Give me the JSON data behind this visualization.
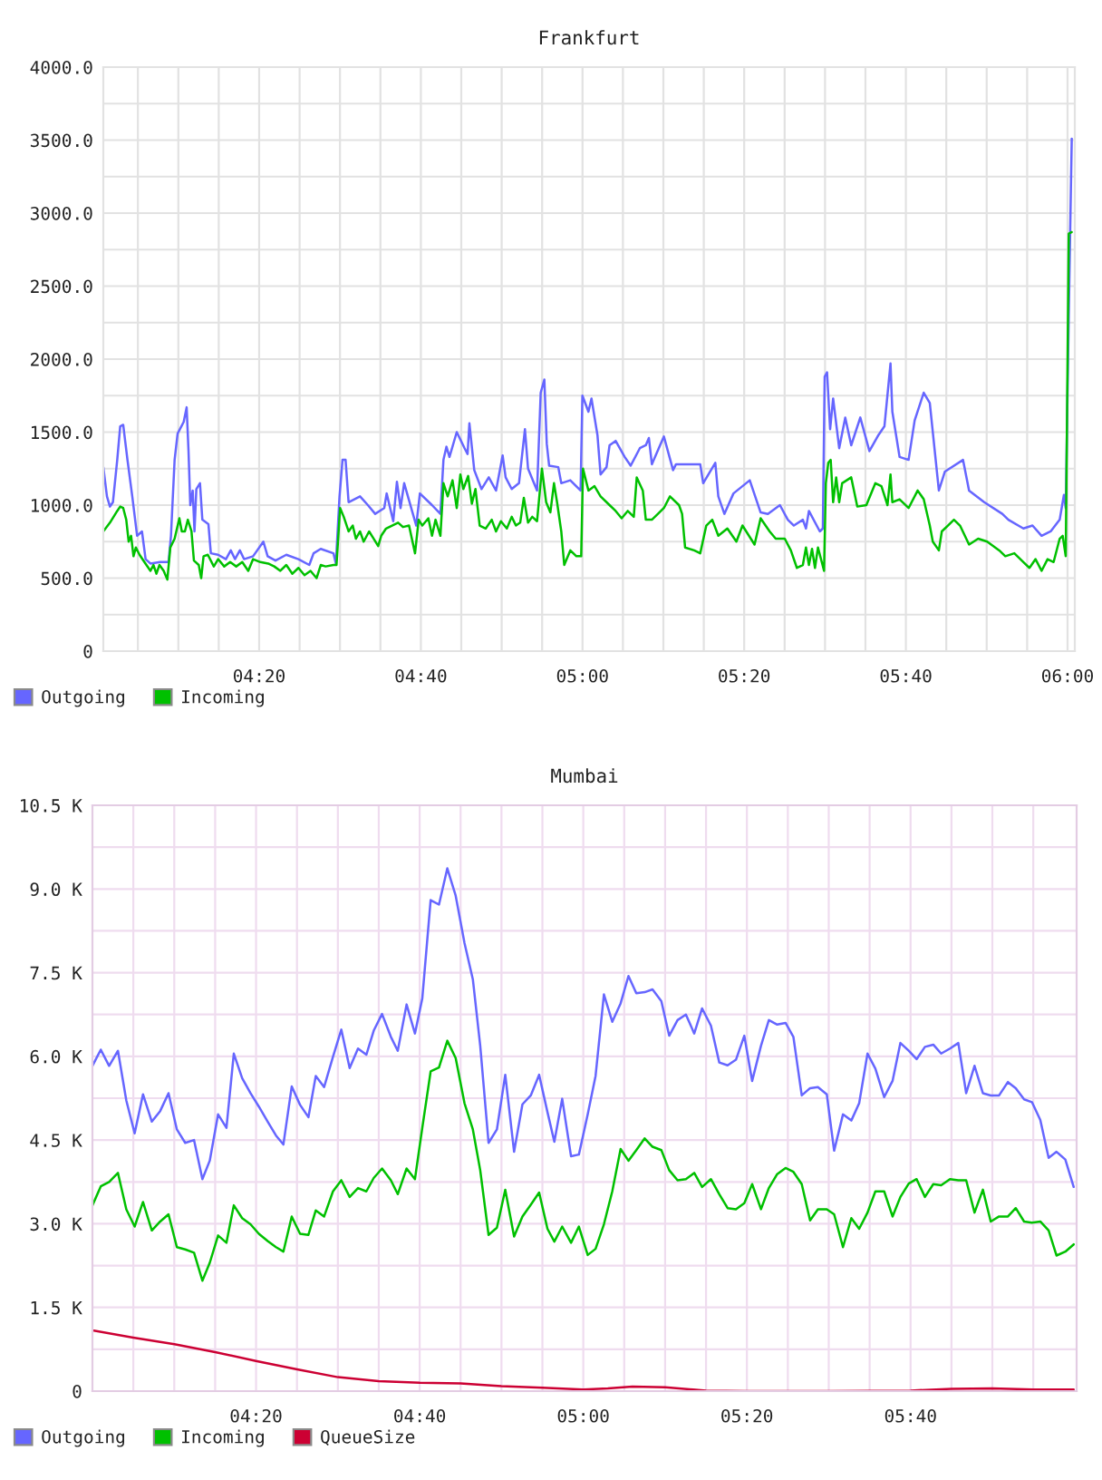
{
  "chart_data": [
    {
      "type": "line",
      "title": "Frankfurt",
      "xlim": [
        4.012,
        6.015
      ],
      "ylim": [
        0,
        4000
      ],
      "grid": true,
      "legend": "bottom left",
      "xticks": [
        {
          "value": 4.0833,
          "label": null
        },
        {
          "value": 4.1667,
          "label": null
        },
        {
          "value": 4.25,
          "label": null
        },
        {
          "value": 4.3333,
          "label": "04:20"
        },
        {
          "value": 4.4167,
          "label": null
        },
        {
          "value": 4.5,
          "label": null
        },
        {
          "value": 4.5833,
          "label": null
        },
        {
          "value": 4.6667,
          "label": "04:40"
        },
        {
          "value": 4.75,
          "label": null
        },
        {
          "value": 4.8333,
          "label": null
        },
        {
          "value": 4.9167,
          "label": null
        },
        {
          "value": 5,
          "label": "05:00"
        },
        {
          "value": 5.0833,
          "label": null
        },
        {
          "value": 5.1667,
          "label": null
        },
        {
          "value": 5.25,
          "label": null
        },
        {
          "value": 5.3333,
          "label": "05:20"
        },
        {
          "value": 5.4167,
          "label": null
        },
        {
          "value": 5.5,
          "label": null
        },
        {
          "value": 5.5833,
          "label": null
        },
        {
          "value": 5.6667,
          "label": "05:40"
        },
        {
          "value": 5.75,
          "label": null
        },
        {
          "value": 5.8333,
          "label": null
        },
        {
          "value": 5.9167,
          "label": null
        },
        {
          "value": 6,
          "label": "06:00"
        }
      ],
      "yticks": [
        0,
        {
          "value": 250,
          "label": null
        },
        {
          "value": 500,
          "label": "500.0"
        },
        {
          "value": 750,
          "label": null
        },
        {
          "value": 1000,
          "label": "1000.0"
        },
        {
          "value": 1250,
          "label": null
        },
        {
          "value": 1500,
          "label": "1500.0"
        },
        {
          "value": 1750,
          "label": null
        },
        {
          "value": 2000,
          "label": "2000.0"
        },
        {
          "value": 2250,
          "label": null
        },
        {
          "value": 2500,
          "label": "2500.0"
        },
        {
          "value": 2750,
          "label": null
        },
        {
          "value": 3000,
          "label": "3000.0"
        },
        {
          "value": 3250,
          "label": null
        },
        {
          "value": 3500,
          "label": "3500.0"
        },
        {
          "value": 3750,
          "label": null
        },
        {
          "value": 4000,
          "label": "4000.0"
        }
      ],
      "series": [
        {
          "name": "Outgoing",
          "color": "#6666ff",
          "x": [
            4.012,
            4.0195,
            4.0257,
            4.0318,
            4.0407,
            4.0468,
            4.053,
            4.0618,
            4.0717,
            4.0817,
            4.0917,
            4.0992,
            4.1092,
            4.129,
            4.1465,
            4.1515,
            4.159,
            4.1652,
            4.1777,
            4.1838,
            4.1877,
            4.1913,
            4.1963,
            4.2,
            4.2038,
            4.2113,
            4.2162,
            4.2287,
            4.2337,
            4.2487,
            4.2648,
            4.2748,
            4.2835,
            4.2935,
            4.3022,
            4.3208,
            4.342,
            4.3508,
            4.367,
            4.3893,
            4.4143,
            4.4367,
            4.4455,
            4.4603,
            4.4865,
            4.4915,
            4.499,
            4.5052,
            4.5115,
            4.5177,
            4.5413,
            4.5575,
            4.5725,
            4.5912,
            4.5962,
            4.6098,
            4.6173,
            4.6248,
            4.6323,
            4.6572,
            4.6647,
            4.6897,
            4.707,
            4.7133,
            4.7195,
            4.7257,
            4.7407,
            4.7568,
            4.763,
            4.7668,
            4.7768,
            4.7917,
            4.8067,
            4.8217,
            4.8353,
            4.8415,
            4.854,
            4.869,
            4.8813,
            4.8877,
            4.9063,
            4.9138,
            4.9213,
            4.9263,
            4.9312,
            4.95,
            4.9562,
            4.9748,
            4.996,
            4.9998,
            5.0122,
            5.0185,
            5.0308,
            5.0372,
            5.0495,
            5.0558,
            5.0683,
            5.087,
            5.0993,
            5.1182,
            5.1305,
            5.1368,
            5.143,
            5.1678,
            5.1867,
            5.1928,
            5.224,
            5.2427,
            5.2488,
            5.2738,
            5.28,
            5.2925,
            5.3112,
            5.3448,
            5.3672,
            5.3822,
            5.407,
            5.4233,
            5.4357,
            5.4543,
            5.4607,
            5.4668,
            5.4893,
            5.4955,
            5.4993,
            5.5042,
            5.5105,
            5.5167,
            5.5292,
            5.5417,
            5.554,
            5.5727,
            5.5915,
            5.6102,
            5.6225,
            5.635,
            5.6388,
            5.6537,
            5.6723,
            5.6848,
            5.7035,
            5.716,
            5.7347,
            5.7472,
            5.7845,
            5.797,
            5.8282,
            5.8655,
            5.878,
            5.909,
            5.9278,
            5.9465,
            5.9652,
            5.9838,
            5.9925,
            5.9963,
            6.0025,
            6.0087
          ],
          "values": [
            1260,
            1060,
            990,
            1020,
            1310,
            1540,
            1550,
            1310,
            1060,
            790,
            820,
            630,
            600,
            610,
            610,
            790,
            1310,
            1490,
            1570,
            1670,
            1370,
            1000,
            1100,
            820,
            1110,
            1150,
            900,
            870,
            670,
            660,
            630,
            690,
            630,
            690,
            630,
            650,
            750,
            650,
            620,
            660,
            630,
            590,
            670,
            700,
            670,
            600,
            1060,
            1310,
            1310,
            1020,
            1060,
            1000,
            940,
            980,
            1080,
            890,
            1160,
            980,
            1150,
            860,
            1080,
            1000,
            940,
            1310,
            1400,
            1330,
            1500,
            1390,
            1350,
            1560,
            1240,
            1110,
            1190,
            1100,
            1340,
            1190,
            1110,
            1150,
            1520,
            1250,
            1100,
            1770,
            1860,
            1420,
            1270,
            1260,
            1150,
            1170,
            1100,
            1750,
            1640,
            1730,
            1480,
            1210,
            1260,
            1410,
            1440,
            1330,
            1270,
            1390,
            1410,
            1460,
            1280,
            1470,
            1240,
            1280,
            1280,
            1280,
            1150,
            1290,
            1060,
            940,
            1080,
            1170,
            950,
            940,
            1000,
            900,
            860,
            900,
            840,
            960,
            820,
            840,
            1880,
            1910,
            1520,
            1730,
            1390,
            1600,
            1410,
            1600,
            1370,
            1480,
            1540,
            1970,
            1640,
            1330,
            1310,
            1580,
            1770,
            1700,
            1100,
            1230,
            1310,
            1100,
            1020,
            940,
            900,
            840,
            860,
            790,
            820,
            900,
            1070,
            980,
            2300,
            3510
          ]
        },
        {
          "name": "Incoming",
          "color": "#00c000",
          "x": [
            4.012,
            4.0257,
            4.0407,
            4.0468,
            4.053,
            4.0593,
            4.0643,
            4.0693,
            4.0742,
            4.0792,
            4.0867,
            4.0967,
            4.1092,
            4.1153,
            4.1215,
            4.1278,
            4.1365,
            4.144,
            4.1502,
            4.159,
            4.1688,
            4.1738,
            4.1802,
            4.1863,
            4.1938,
            4.1988,
            4.2088,
            4.2138,
            4.2187,
            4.2275,
            4.2398,
            4.2487,
            4.2612,
            4.2735,
            4.286,
            4.2985,
            4.3108,
            4.3208,
            4.3358,
            4.352,
            4.3645,
            4.377,
            4.3893,
            4.4018,
            4.4143,
            4.4268,
            4.4392,
            4.4517,
            4.4603,
            4.4703,
            4.4865,
            4.4928,
            4.5002,
            4.5077,
            4.5177,
            4.5263,
            4.5327,
            4.5413,
            4.5488,
            4.56,
            4.5675,
            4.5787,
            4.585,
            4.595,
            4.6073,
            4.6198,
            4.6298,
            4.6423,
            4.6547,
            4.6622,
            4.6697,
            4.6822,
            4.6897,
            4.697,
            4.707,
            4.7133,
            4.722,
            4.732,
            4.7407,
            4.7482,
            4.7543,
            4.7643,
            4.7718,
            4.7793,
            4.788,
            4.8005,
            4.8128,
            4.8217,
            4.8317,
            4.844,
            4.854,
            4.8627,
            4.8715,
            4.879,
            4.8877,
            4.8963,
            4.9063,
            4.9163,
            4.925,
            4.9337,
            4.9412,
            4.9475,
            4.9562,
            4.9623,
            4.9748,
            4.9873,
            4.9973,
            5.001,
            5.0122,
            5.0247,
            5.0372,
            5.0558,
            5.0683,
            5.0807,
            5.0932,
            5.1057,
            5.1118,
            5.1243,
            5.1305,
            5.143,
            5.1555,
            5.1678,
            5.1803,
            5.199,
            5.2053,
            5.2115,
            5.2302,
            5.2427,
            5.2552,
            5.2675,
            5.28,
            5.2987,
            5.3173,
            5.3298,
            5.3547,
            5.3672,
            5.3858,
            5.3983,
            5.417,
            5.4295,
            5.442,
            5.4543,
            5.4607,
            5.4668,
            5.4732,
            5.4793,
            5.4855,
            5.498,
            5.5017,
            5.5067,
            5.5117,
            5.5167,
            5.523,
            5.5292,
            5.5353,
            5.554,
            5.5665,
            5.5852,
            5.6038,
            5.6163,
            5.6288,
            5.635,
            5.6388,
            5.6537,
            5.6723,
            5.691,
            5.7035,
            5.716,
            5.7222,
            5.7347,
            5.7408,
            5.7533,
            5.7658,
            5.7783,
            5.797,
            5.8157,
            5.8343,
            5.8592,
            5.8717,
            5.8903,
            5.909,
            5.9215,
            5.934,
            5.9465,
            5.9588,
            5.9713,
            5.9838,
            5.99,
            5.9963,
            6.0025,
            6.0087
          ],
          "values": [
            820,
            880,
            960,
            990,
            980,
            900,
            750,
            790,
            650,
            710,
            660,
            610,
            550,
            590,
            530,
            590,
            550,
            490,
            710,
            770,
            910,
            820,
            820,
            900,
            820,
            620,
            590,
            500,
            650,
            660,
            580,
            630,
            580,
            610,
            580,
            610,
            550,
            630,
            610,
            600,
            580,
            550,
            590,
            530,
            570,
            520,
            550,
            500,
            590,
            580,
            590,
            590,
            980,
            920,
            820,
            860,
            770,
            820,
            750,
            820,
            780,
            720,
            790,
            840,
            860,
            880,
            850,
            860,
            670,
            900,
            860,
            910,
            790,
            900,
            790,
            1150,
            1060,
            1170,
            980,
            1210,
            1110,
            1200,
            1010,
            1110,
            860,
            840,
            900,
            820,
            890,
            840,
            920,
            860,
            880,
            1050,
            880,
            920,
            890,
            1250,
            1020,
            950,
            1150,
            1020,
            820,
            590,
            690,
            650,
            650,
            1250,
            1100,
            1130,
            1060,
            1000,
            960,
            910,
            960,
            920,
            1190,
            1100,
            900,
            900,
            940,
            980,
            1060,
            1000,
            940,
            710,
            690,
            670,
            860,
            900,
            790,
            840,
            750,
            860,
            730,
            910,
            820,
            770,
            770,
            690,
            570,
            590,
            710,
            590,
            700,
            570,
            710,
            550,
            1150,
            1290,
            1310,
            1020,
            1190,
            1020,
            1150,
            1190,
            990,
            1000,
            1150,
            1130,
            1000,
            1210,
            1020,
            1040,
            980,
            1100,
            1040,
            860,
            750,
            690,
            820,
            860,
            900,
            860,
            730,
            770,
            750,
            690,
            650,
            670,
            610,
            570,
            630,
            550,
            630,
            610,
            770,
            790,
            650,
            2860,
            2870
          ]
        }
      ]
    },
    {
      "type": "line",
      "title": "Mumbai",
      "xlim": [
        4.0,
        6.005
      ],
      "ylim": [
        0,
        10500
      ],
      "grid": true,
      "legend": "bottom left",
      "xticks": [
        {
          "value": 4.0833,
          "label": null
        },
        {
          "value": 4.1667,
          "label": null
        },
        {
          "value": 4.25,
          "label": null
        },
        {
          "value": 4.3333,
          "label": "04:20"
        },
        {
          "value": 4.4167,
          "label": null
        },
        {
          "value": 4.5,
          "label": null
        },
        {
          "value": 4.5833,
          "label": null
        },
        {
          "value": 4.6667,
          "label": "04:40"
        },
        {
          "value": 4.75,
          "label": null
        },
        {
          "value": 4.8333,
          "label": null
        },
        {
          "value": 4.9167,
          "label": null
        },
        {
          "value": 5,
          "label": "05:00"
        },
        {
          "value": 5.0833,
          "label": null
        },
        {
          "value": 5.1667,
          "label": null
        },
        {
          "value": 5.25,
          "label": null
        },
        {
          "value": 5.3333,
          "label": "05:20"
        },
        {
          "value": 5.4167,
          "label": null
        },
        {
          "value": 5.5,
          "label": null
        },
        {
          "value": 5.5833,
          "label": null
        },
        {
          "value": 5.6667,
          "label": "05:40"
        },
        {
          "value": 5.75,
          "label": null
        },
        {
          "value": 5.8333,
          "label": null
        },
        {
          "value": 5.9167,
          "label": null
        }
      ],
      "yticks": [
        0,
        {
          "value": 750,
          "label": null
        },
        {
          "value": 1500,
          "label": "1.5 K"
        },
        {
          "value": 2250,
          "label": null
        },
        {
          "value": 3000,
          "label": "3.0 K"
        },
        {
          "value": 3750,
          "label": null
        },
        {
          "value": 4500,
          "label": "4.5 K"
        },
        {
          "value": 5250,
          "label": null
        },
        {
          "value": 6000,
          "label": "6.0 K"
        },
        {
          "value": 6750,
          "label": null
        },
        {
          "value": 7500,
          "label": "7.5 K"
        },
        {
          "value": 8250,
          "label": null
        },
        {
          "value": 9000,
          "label": "9.0 K"
        },
        {
          "value": 9750,
          "label": null
        },
        {
          "value": 10500,
          "label": "10.5 K"
        }
      ],
      "series": [
        {
          "name": "Outgoing",
          "color": "#6666ff",
          "x": [
            4.0,
            4.017,
            4.034,
            4.052,
            4.069,
            4.086,
            4.103,
            4.121,
            4.138,
            4.155,
            4.172,
            4.189,
            4.207,
            4.224,
            4.239,
            4.256,
            4.273,
            4.288,
            4.305,
            4.322,
            4.339,
            4.357,
            4.374,
            4.389,
            4.406,
            4.423,
            4.44,
            4.455,
            4.472,
            4.49,
            4.507,
            4.524,
            4.541,
            4.558,
            4.573,
            4.59,
            4.608,
            4.622,
            4.64,
            4.657,
            4.672,
            4.689,
            4.706,
            4.723,
            4.74,
            4.758,
            4.775,
            4.79,
            4.807,
            4.824,
            4.841,
            4.859,
            4.876,
            4.893,
            4.91,
            4.927,
            4.941,
            4.957,
            4.975,
            4.991,
            5.009,
            5.025,
            5.042,
            5.059,
            5.076,
            5.092,
            5.108,
            5.125,
            5.141,
            5.159,
            5.175,
            5.192,
            5.209,
            5.226,
            5.242,
            5.26,
            5.277,
            5.294,
            5.311,
            5.328,
            5.344,
            5.362,
            5.378,
            5.395,
            5.412,
            5.428,
            5.445,
            5.462,
            5.478,
            5.496,
            5.511,
            5.529,
            5.546,
            5.562,
            5.579,
            5.595,
            5.613,
            5.63,
            5.646,
            5.663,
            5.679,
            5.696,
            5.713,
            5.729,
            5.747,
            5.764,
            5.78,
            5.797,
            5.814,
            5.83,
            5.847,
            5.865,
            5.881,
            5.898,
            5.914,
            5.931,
            5.948,
            5.964,
            5.982,
            5.999
          ],
          "values": [
            5830,
            6120,
            5830,
            6100,
            5210,
            4620,
            5320,
            4830,
            5020,
            5340,
            4690,
            4450,
            4500,
            3800,
            4130,
            4960,
            4720,
            6050,
            5610,
            5340,
            5100,
            4830,
            4580,
            4420,
            5460,
            5130,
            4910,
            5650,
            5450,
            5990,
            6480,
            5790,
            6140,
            6030,
            6460,
            6760,
            6350,
            6100,
            6930,
            6410,
            7040,
            8800,
            8720,
            9370,
            8880,
            8030,
            7380,
            6190,
            4450,
            4690,
            5670,
            4290,
            5140,
            5300,
            5670,
            5000,
            4470,
            5240,
            4210,
            4240,
            4960,
            5650,
            7110,
            6620,
            6950,
            7440,
            7130,
            7150,
            7200,
            6990,
            6370,
            6650,
            6750,
            6410,
            6860,
            6550,
            5890,
            5840,
            5940,
            6370,
            5560,
            6190,
            6650,
            6570,
            6600,
            6350,
            5300,
            5430,
            5450,
            5320,
            4310,
            4960,
            4850,
            5160,
            6050,
            5780,
            5270,
            5560,
            6240,
            6100,
            5950,
            6170,
            6210,
            6050,
            6140,
            6240,
            5340,
            5830,
            5340,
            5300,
            5300,
            5540,
            5430,
            5230,
            5180,
            4860,
            4180,
            4290,
            4150,
            3660
          ]
        },
        {
          "name": "Incoming",
          "color": "#00c000",
          "x": [
            4.0,
            4.017,
            4.034,
            4.052,
            4.069,
            4.086,
            4.103,
            4.121,
            4.138,
            4.155,
            4.172,
            4.189,
            4.207,
            4.224,
            4.239,
            4.256,
            4.273,
            4.288,
            4.305,
            4.322,
            4.339,
            4.357,
            4.374,
            4.389,
            4.406,
            4.423,
            4.44,
            4.455,
            4.472,
            4.49,
            4.507,
            4.524,
            4.541,
            4.558,
            4.573,
            4.59,
            4.608,
            4.622,
            4.64,
            4.657,
            4.672,
            4.689,
            4.706,
            4.723,
            4.74,
            4.758,
            4.775,
            4.79,
            4.807,
            4.824,
            4.841,
            4.859,
            4.876,
            4.893,
            4.91,
            4.927,
            4.941,
            4.957,
            4.975,
            4.991,
            5.009,
            5.025,
            5.042,
            5.059,
            5.076,
            5.092,
            5.108,
            5.125,
            5.141,
            5.159,
            5.175,
            5.192,
            5.209,
            5.226,
            5.242,
            5.26,
            5.277,
            5.294,
            5.311,
            5.328,
            5.344,
            5.362,
            5.378,
            5.395,
            5.412,
            5.428,
            5.445,
            5.462,
            5.478,
            5.496,
            5.511,
            5.529,
            5.546,
            5.562,
            5.579,
            5.595,
            5.613,
            5.63,
            5.646,
            5.663,
            5.679,
            5.696,
            5.713,
            5.729,
            5.747,
            5.764,
            5.78,
            5.797,
            5.814,
            5.83,
            5.847,
            5.865,
            5.881,
            5.898,
            5.914,
            5.931,
            5.948,
            5.964,
            5.982,
            5.999
          ],
          "values": [
            3330,
            3670,
            3750,
            3910,
            3260,
            2950,
            3390,
            2880,
            3040,
            3170,
            2580,
            2540,
            2480,
            1980,
            2300,
            2790,
            2660,
            3330,
            3100,
            2990,
            2820,
            2690,
            2580,
            2500,
            3130,
            2820,
            2800,
            3240,
            3130,
            3580,
            3780,
            3480,
            3640,
            3580,
            3820,
            3990,
            3780,
            3530,
            3990,
            3800,
            4720,
            5730,
            5800,
            6280,
            5970,
            5160,
            4690,
            3960,
            2800,
            2930,
            3610,
            2770,
            3130,
            3340,
            3560,
            2910,
            2680,
            2950,
            2660,
            2950,
            2440,
            2550,
            2990,
            3580,
            4340,
            4130,
            4320,
            4530,
            4380,
            4320,
            3960,
            3780,
            3800,
            3910,
            3660,
            3800,
            3530,
            3280,
            3260,
            3370,
            3710,
            3260,
            3640,
            3890,
            4000,
            3930,
            3710,
            3060,
            3260,
            3260,
            3170,
            2580,
            3100,
            2910,
            3200,
            3580,
            3580,
            3130,
            3480,
            3720,
            3800,
            3480,
            3710,
            3690,
            3800,
            3780,
            3780,
            3200,
            3610,
            3040,
            3130,
            3130,
            3280,
            3040,
            3020,
            3040,
            2880,
            2430,
            2500,
            2630
          ]
        },
        {
          "name": "QueueSize",
          "color": "#cc0033",
          "x": [
            4.0,
            4.083,
            4.167,
            4.25,
            4.333,
            4.417,
            4.5,
            4.583,
            4.667,
            4.75,
            4.833,
            4.917,
            5.0,
            5.05,
            5.1,
            5.167,
            5.25,
            5.333,
            5.5,
            5.667,
            5.75,
            5.833,
            5.917,
            5.999
          ],
          "values": [
            1090,
            960,
            840,
            700,
            540,
            390,
            250,
            180,
            150,
            140,
            90,
            60,
            30,
            50,
            80,
            70,
            10,
            0,
            0,
            10,
            40,
            50,
            30,
            30
          ]
        }
      ]
    }
  ]
}
